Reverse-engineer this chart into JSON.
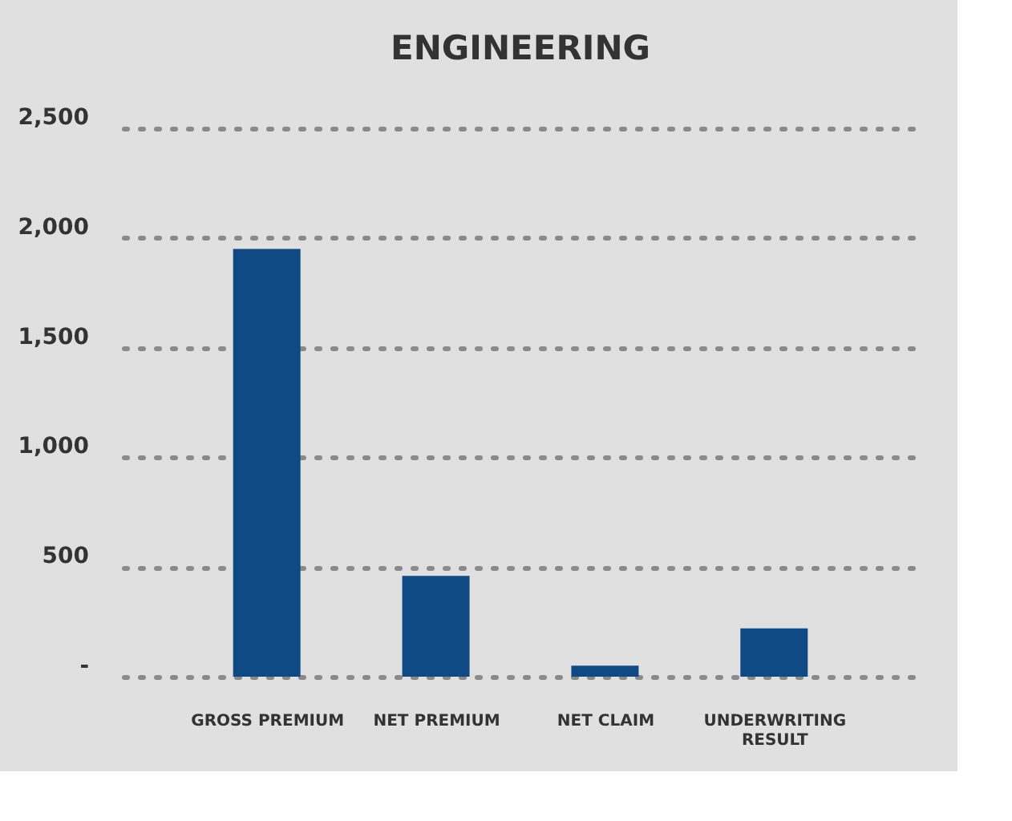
{
  "chart_data": {
    "type": "bar",
    "title": "ENGINEERING",
    "categories": [
      "GROSS PREMIUM",
      "NET PREMIUM",
      "NET CLAIM",
      "UNDERWRITING RESULT"
    ],
    "values": [
      1950,
      460,
      50,
      220
    ],
    "color": "#0f4a84",
    "ylim": [
      0,
      2500
    ],
    "yticks": [
      {
        "value": 0,
        "label": "-"
      },
      500,
      {
        "value": 1000,
        "label": "1,000"
      },
      {
        "value": 1500,
        "label": "1,500"
      },
      {
        "value": 2000,
        "label": "2,000"
      },
      {
        "value": 2500,
        "label": "2,500"
      }
    ],
    "grid": "y"
  }
}
